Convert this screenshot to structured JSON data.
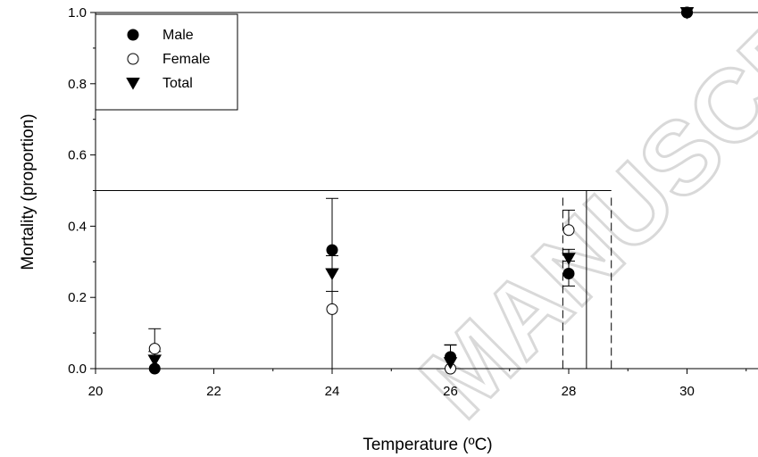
{
  "chart_data": {
    "type": "scatter",
    "xlabel": "Temperature (ºC)",
    "ylabel": "Mortality (proportion)",
    "xlim": [
      20,
      31.2
    ],
    "ylim": [
      0,
      1.0
    ],
    "x_ticks": [
      "20",
      "22",
      "24",
      "26",
      "28",
      "30"
    ],
    "y_ticks": [
      "0.0",
      "0.2",
      "0.4",
      "0.6",
      "0.8",
      "1.0"
    ],
    "grid": false,
    "legend_position": "top-left",
    "series": [
      {
        "name": "Male",
        "marker": "filled-circle",
        "x": [
          21,
          24,
          26,
          28,
          30
        ],
        "y": [
          0.0,
          0.333,
          0.033,
          0.267,
          1.0
        ],
        "error": [
          0.0,
          0.145,
          0.033,
          0.035,
          0.0
        ]
      },
      {
        "name": "Female",
        "marker": "open-circle",
        "x": [
          21,
          24,
          26,
          28,
          30
        ],
        "y": [
          0.056,
          0.167,
          0.0,
          0.389,
          1.0
        ],
        "error": [
          0.056,
          0.0,
          0.0,
          0.056,
          0.0
        ]
      },
      {
        "name": "Total",
        "marker": "filled-triangle-down",
        "x": [
          21,
          24,
          26,
          28,
          30
        ],
        "y": [
          0.024,
          0.267,
          0.017,
          0.31,
          1.0
        ],
        "error": [
          0.024,
          0.05,
          0.05,
          0.025,
          0.0
        ]
      }
    ],
    "reference_lines": {
      "horizontal_upper_y": 1.0,
      "horizontal_mid_y": 0.5,
      "horizontal_mid_x_end": 28.72,
      "vertical_solid_x": 28.3,
      "vertical_dashed_x": [
        27.9,
        28.72
      ]
    }
  },
  "watermark": {
    "text": "MANUSCRIPT",
    "color": "#d9d9d9"
  }
}
